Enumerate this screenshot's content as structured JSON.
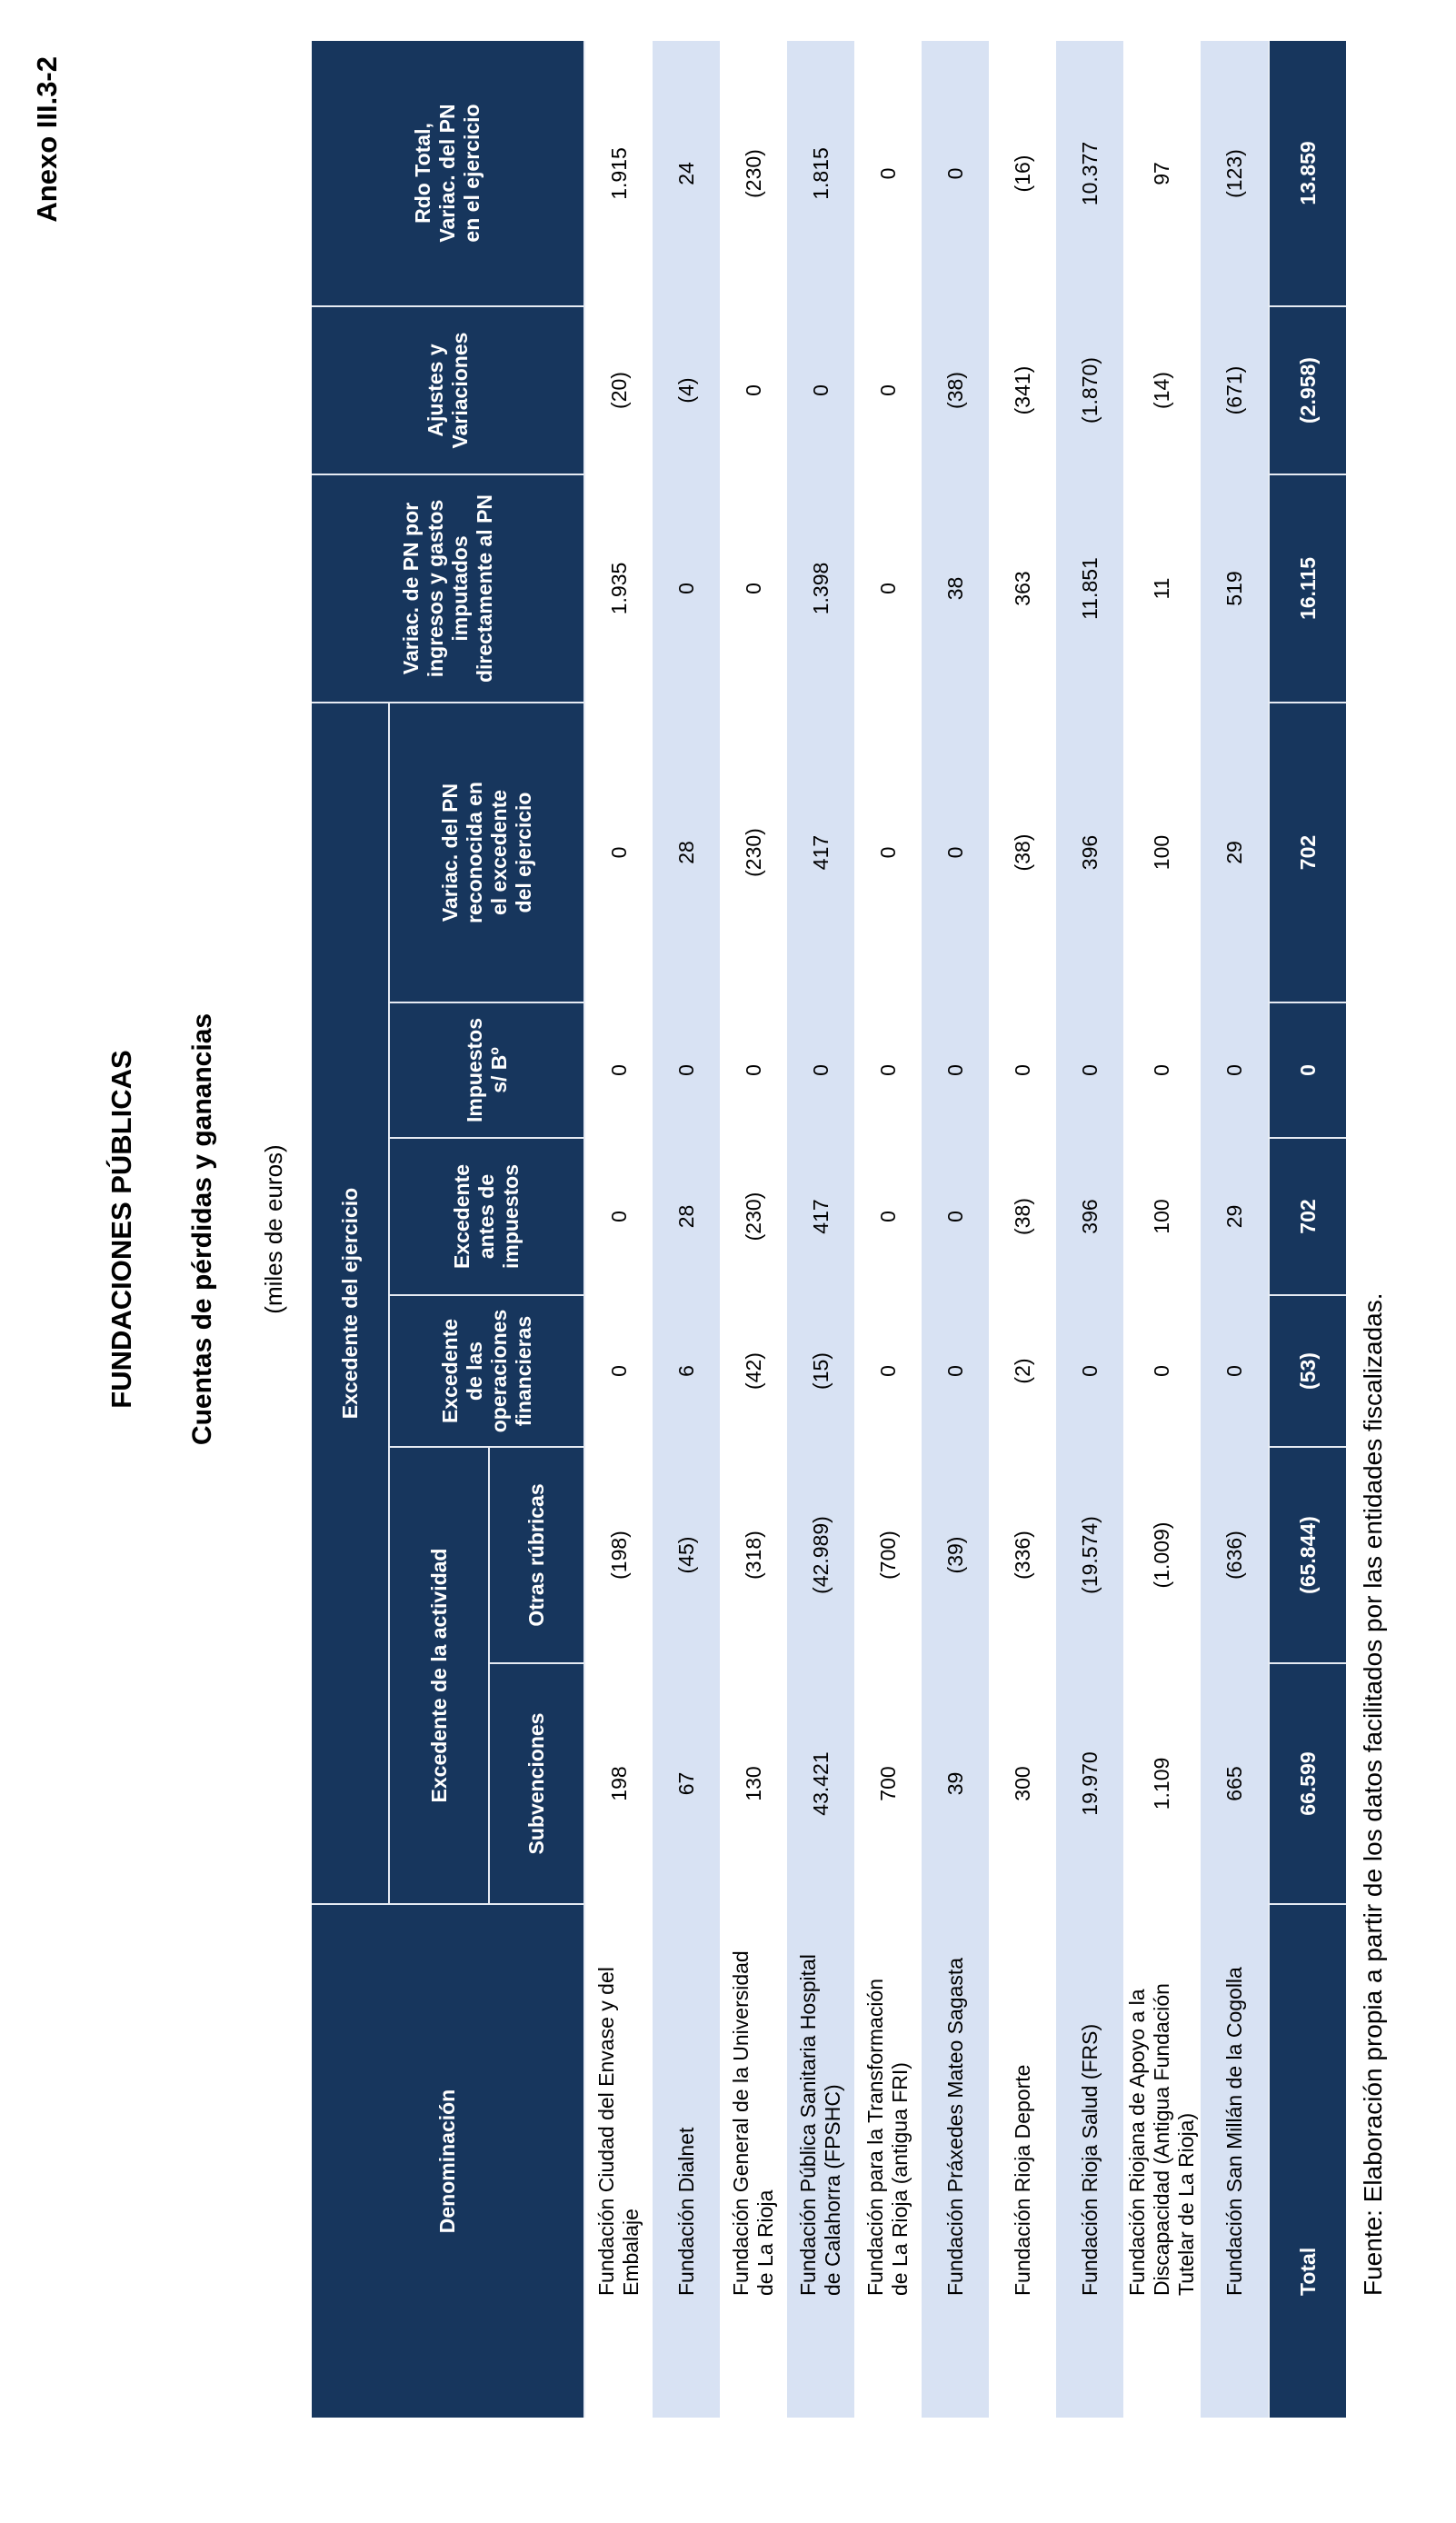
{
  "page": {
    "anexo": "Anexo III.3-2",
    "title1": "FUNDACIONES PÚBLICAS",
    "title2": "Cuentas de pérdidas y ganancias",
    "title3": "(miles de euros)",
    "fuente": "Fuente: Elaboración propia a partir de los datos facilitados por las entidades fiscalizadas."
  },
  "colors": {
    "header_navy": "#17365d",
    "row_alt_blue": "#d8e2f3",
    "cell_border": "#e6ebf3"
  },
  "table": {
    "headers": {
      "denominacion": "Denominación",
      "grupo_excedente_ejercicio": "Excedente del ejercicio",
      "grupo_excedente_actividad": "Excedente de la actividad",
      "subvenciones": "Subvenciones",
      "otras_rubricas": "Otras rúbricas",
      "exc_oper_financieras": "Excedente\nde las\noperaciones\nfinancieras",
      "exc_antes_impuestos": "Excedente\nantes de\nimpuestos",
      "impuestos": "Impuestos\ns/ Bº",
      "variac_pn_reconocida": "Variac. del PN\nreconocida en\nel excedente\ndel ejercicio",
      "variac_pn_ingresos": "Variac. de PN por\ningresos y gastos\nimputados\ndirectamente al PN",
      "ajustes": "Ajustes y\nVariaciones",
      "rdo_total": "Rdo Total,\nVariac. del PN\nen el ejercicio"
    },
    "header_keys": [
      "subvenciones",
      "otras-rubricas",
      "exc-oper-financieras",
      "exc-antes-impuestos",
      "impuestos",
      "variac-pn-reconocida",
      "variac-pn-ingresos",
      "ajustes",
      "rdo-total"
    ],
    "rows": [
      {
        "name": "Fundación Ciudad del Envase y del\nEmbalaje",
        "values": [
          "198",
          "(198)",
          "0",
          "0",
          "0",
          "0",
          "1.935",
          "(20)",
          "1.915"
        ]
      },
      {
        "name": "Fundación Dialnet",
        "values": [
          "67",
          "(45)",
          "6",
          "28",
          "0",
          "28",
          "0",
          "(4)",
          "24"
        ]
      },
      {
        "name": "Fundación General de la Universidad\nde La Rioja",
        "values": [
          "130",
          "(318)",
          "(42)",
          "(230)",
          "0",
          "(230)",
          "0",
          "0",
          "(230)"
        ]
      },
      {
        "name": "Fundación Pública Sanitaria Hospital\nde Calahorra (FPSHC)",
        "values": [
          "43.421",
          "(42.989)",
          "(15)",
          "417",
          "0",
          "417",
          "1.398",
          "0",
          "1.815"
        ]
      },
      {
        "name": "Fundación para la Transformación\nde La Rioja (antigua FRI)",
        "values": [
          "700",
          "(700)",
          "0",
          "0",
          "0",
          "0",
          "0",
          "0",
          "0"
        ]
      },
      {
        "name": "Fundación Práxedes Mateo Sagasta",
        "values": [
          "39",
          "(39)",
          "0",
          "0",
          "0",
          "0",
          "38",
          "(38)",
          "0"
        ]
      },
      {
        "name": "Fundación Rioja Deporte",
        "values": [
          "300",
          "(336)",
          "(2)",
          "(38)",
          "0",
          "(38)",
          "363",
          "(341)",
          "(16)"
        ]
      },
      {
        "name": "Fundación Rioja Salud (FRS)",
        "values": [
          "19.970",
          "(19.574)",
          "0",
          "396",
          "0",
          "396",
          "11.851",
          "(1.870)",
          "10.377"
        ]
      },
      {
        "name": "Fundación Riojana de Apoyo a la\nDiscapacidad (Antigua Fundación\nTutelar de La Rioja)",
        "values": [
          "1.109",
          "(1.009)",
          "0",
          "100",
          "0",
          "100",
          "11",
          "(14)",
          "97"
        ]
      },
      {
        "name": "Fundación San Millán de la Cogolla",
        "values": [
          "665",
          "(636)",
          "0",
          "29",
          "0",
          "29",
          "519",
          "(671)",
          "(123)"
        ]
      }
    ],
    "total": {
      "label": "Total",
      "values": [
        "66.599",
        "(65.844)",
        "(53)",
        "702",
        "0",
        "702",
        "16.115",
        "(2.958)",
        "13.859"
      ]
    }
  }
}
